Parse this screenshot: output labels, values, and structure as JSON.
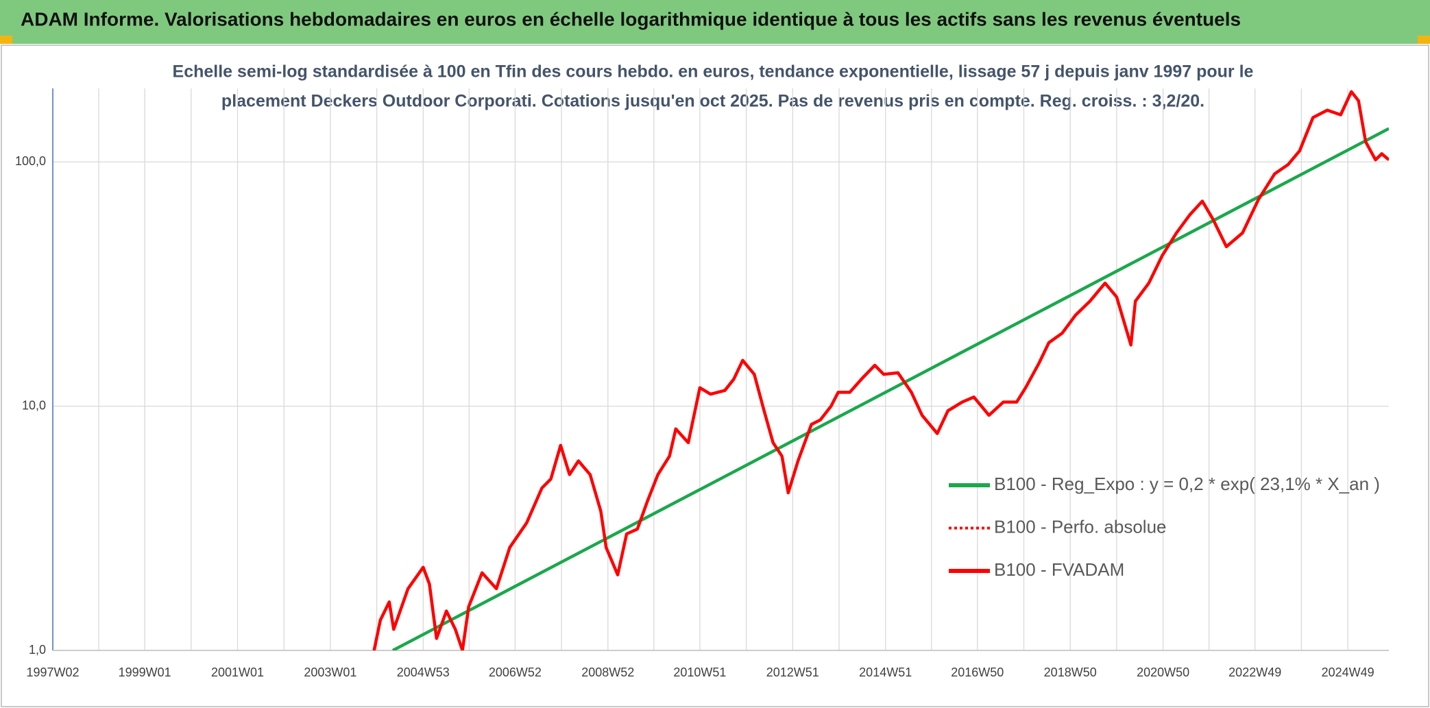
{
  "chart_data": {
    "type": "line",
    "title": "ADAM Informe. Valorisations hebdomadaires en euros en échelle logarithmique identique à tous les actifs sans les revenus éventuels",
    "subtitle": [
      "Echelle semi-log standardisée à 100 en Tfin des cours hebdo. en euros, tendance exponentielle, lissage 57 j depuis janv 1997 pour le",
      "placement Deckers Outdoor Corporati. Cotations jusqu'en oct 2025. Pas de revenus pris en compte. Reg. croiss. : 3,2/20."
    ],
    "log_scale": true,
    "grid": true,
    "legend_position": "right",
    "xlim": [
      "1997W02",
      "2025W43"
    ],
    "xticks": [
      "1997W02",
      "1999W01",
      "2001W01",
      "2003W01",
      "2004W53",
      "2006W52",
      "2008W52",
      "2010W51",
      "2012W51",
      "2014W51",
      "2016W50",
      "2018W50",
      "2020W50",
      "2022W49",
      "2024W49"
    ],
    "ylim": [
      1,
      200
    ],
    "yticks": [
      {
        "value": 1,
        "label": "1,0"
      },
      {
        "value": 10,
        "label": "10,0"
      },
      {
        "value": 100,
        "label": "100,0"
      }
    ],
    "series": [
      {
        "name": "B100 - Reg_Expo : y = 0,2 * exp( 23,1% *  X_an )",
        "color": "#1aa84c",
        "style": "solid",
        "x": [
          "2004W19",
          "2025W43"
        ],
        "values": [
          1.0,
          137
        ]
      },
      {
        "name": "B100 - Perfo. absolue",
        "color": "#ff0000",
        "style": "dotted",
        "x": [
          "2003W50",
          "2004W05",
          "2004W15",
          "2004W20",
          "2004W36",
          "2005W01",
          "2005W08",
          "2005W16",
          "2005W27",
          "2005W37",
          "2005W45",
          "2005W52",
          "2006W15",
          "2006W31",
          "2006W46",
          "2007W13",
          "2007W30",
          "2007W40",
          "2007W51",
          "2008W09",
          "2008W19",
          "2008W32",
          "2008W44",
          "2008W50",
          "2009W11",
          "2009W21",
          "2009W33",
          "2009W44",
          "2010W04",
          "2010W17",
          "2010W24",
          "2010W38",
          "2010W51",
          "2011W11",
          "2011W27",
          "2011W37",
          "2011W47",
          "2012W08",
          "2012W19",
          "2012W29",
          "2012W39",
          "2012W46",
          "2013W05",
          "2013W20",
          "2013W30",
          "2013W42",
          "2013W50",
          "2014W11",
          "2014W24",
          "2014W39",
          "2014W49",
          "2015W13",
          "2015W28",
          "2015W40",
          "2016W05",
          "2016W17",
          "2016W33",
          "2016W46",
          "2017W11",
          "2017W27",
          "2017W42",
          "2017W52",
          "2018W15",
          "2018W26",
          "2018W41",
          "2019W04",
          "2019W20",
          "2019W37",
          "2019W50",
          "2020W14",
          "2020W19",
          "2020W34",
          "2020W49",
          "2021W13",
          "2021W28",
          "2021W42",
          "2022W02",
          "2022W17",
          "2022W35",
          "2023W01",
          "2023W19",
          "2023W34",
          "2023W47",
          "2024W10",
          "2024W26",
          "2024W41",
          "2025W01",
          "2025W09",
          "2025W17",
          "2025W28",
          "2025W35",
          "2025W43"
        ],
        "values": [
          1.0,
          1.33,
          1.58,
          1.22,
          1.79,
          2.19,
          1.87,
          1.12,
          1.45,
          1.22,
          1.0,
          1.51,
          2.08,
          1.79,
          2.64,
          3.33,
          4.62,
          5.03,
          6.91,
          5.25,
          5.97,
          5.25,
          3.72,
          2.64,
          2.04,
          3.0,
          3.14,
          4.06,
          5.25,
          6.24,
          8.07,
          7.09,
          11.9,
          11.2,
          11.6,
          12.9,
          15.4,
          13.5,
          9.58,
          7.09,
          6.24,
          4.42,
          5.97,
          8.42,
          8.79,
          10.0,
          11.4,
          11.4,
          12.9,
          14.7,
          13.5,
          13.7,
          11.4,
          9.18,
          7.73,
          9.58,
          10.4,
          10.9,
          9.18,
          10.4,
          10.4,
          11.9,
          15.0,
          18.2,
          19.9,
          23.6,
          26.9,
          31.9,
          28.0,
          17.8,
          26.9,
          31.9,
          41.3,
          51.2,
          60.8,
          69.1,
          58.2,
          45.0,
          51.2,
          70.3,
          89.4,
          97.5,
          111,
          152,
          163,
          156,
          194,
          178,
          121,
          102,
          108,
          102
        ]
      },
      {
        "name": "B100 - FVADAM",
        "color": "#ff0000",
        "style": "solid",
        "x": [
          "2003W50",
          "2004W05",
          "2004W15",
          "2004W20",
          "2004W36",
          "2005W01",
          "2005W08",
          "2005W16",
          "2005W27",
          "2005W37",
          "2005W45",
          "2005W52",
          "2006W15",
          "2006W31",
          "2006W46",
          "2007W13",
          "2007W30",
          "2007W40",
          "2007W51",
          "2008W09",
          "2008W19",
          "2008W32",
          "2008W44",
          "2008W50",
          "2009W11",
          "2009W21",
          "2009W33",
          "2009W44",
          "2010W04",
          "2010W17",
          "2010W24",
          "2010W38",
          "2010W51",
          "2011W11",
          "2011W27",
          "2011W37",
          "2011W47",
          "2012W08",
          "2012W19",
          "2012W29",
          "2012W39",
          "2012W46",
          "2013W05",
          "2013W20",
          "2013W30",
          "2013W42",
          "2013W50",
          "2014W11",
          "2014W24",
          "2014W39",
          "2014W49",
          "2015W13",
          "2015W28",
          "2015W40",
          "2016W05",
          "2016W17",
          "2016W33",
          "2016W46",
          "2017W11",
          "2017W27",
          "2017W42",
          "2017W52",
          "2018W15",
          "2018W26",
          "2018W41",
          "2019W04",
          "2019W20",
          "2019W37",
          "2019W50",
          "2020W14",
          "2020W19",
          "2020W34",
          "2020W49",
          "2021W13",
          "2021W28",
          "2021W42",
          "2022W02",
          "2022W17",
          "2022W35",
          "2023W01",
          "2023W19",
          "2023W34",
          "2023W47",
          "2024W10",
          "2024W26",
          "2024W41",
          "2025W01",
          "2025W09",
          "2025W17",
          "2025W28",
          "2025W35",
          "2025W43"
        ],
        "values": [
          1.0,
          1.33,
          1.58,
          1.22,
          1.79,
          2.19,
          1.87,
          1.12,
          1.45,
          1.22,
          1.0,
          1.51,
          2.08,
          1.79,
          2.64,
          3.33,
          4.62,
          5.03,
          6.91,
          5.25,
          5.97,
          5.25,
          3.72,
          2.64,
          2.04,
          3.0,
          3.14,
          4.06,
          5.25,
          6.24,
          8.07,
          7.09,
          11.9,
          11.2,
          11.6,
          12.9,
          15.4,
          13.5,
          9.58,
          7.09,
          6.24,
          4.42,
          5.97,
          8.42,
          8.79,
          10.0,
          11.4,
          11.4,
          12.9,
          14.7,
          13.5,
          13.7,
          11.4,
          9.18,
          7.73,
          9.58,
          10.4,
          10.9,
          9.18,
          10.4,
          10.4,
          11.9,
          15.0,
          18.2,
          19.9,
          23.6,
          26.9,
          31.9,
          28.0,
          17.8,
          26.9,
          31.9,
          41.3,
          51.2,
          60.8,
          69.1,
          58.2,
          45.0,
          51.2,
          70.3,
          89.4,
          97.5,
          111,
          152,
          163,
          156,
          194,
          178,
          121,
          102,
          108,
          102
        ]
      }
    ]
  }
}
